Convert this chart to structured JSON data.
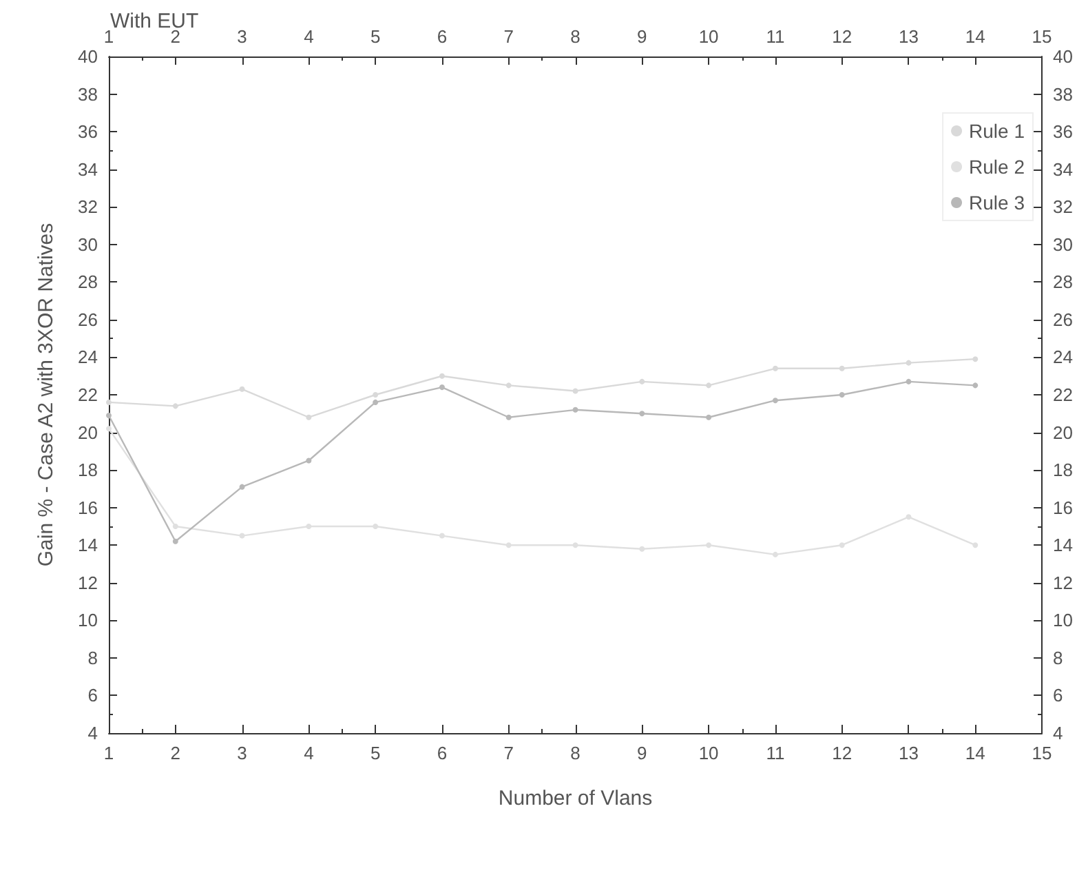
{
  "chart_data": {
    "type": "line",
    "xlabel": "Number of Vlans",
    "ylabel": "Gain % - Case A2 with 3XOR Natives",
    "x2label": "With EUT",
    "x": [
      1,
      2,
      3,
      4,
      5,
      6,
      7,
      8,
      9,
      10,
      11,
      12,
      13,
      14
    ],
    "series": [
      {
        "name": "Rule 1",
        "color": "#d9d9d9",
        "values": [
          21.6,
          21.4,
          22.3,
          20.8,
          22,
          23,
          22.5,
          22.2,
          22.7,
          22.5,
          23.4,
          23.4,
          23.7,
          23.9
        ]
      },
      {
        "name": "Rule 2",
        "color": "#e0e0e0",
        "values": [
          20.2,
          15,
          14.5,
          15,
          15,
          14.5,
          14,
          14,
          13.8,
          14,
          13.5,
          14,
          15.5,
          14
        ]
      },
      {
        "name": "Rule 3",
        "color": "#b8b8b8",
        "values": [
          20.9,
          14.2,
          17.1,
          18.5,
          21.6,
          22.4,
          20.8,
          21.2,
          21,
          20.8,
          21.7,
          22,
          22.7,
          22.5
        ]
      }
    ],
    "xlim": [
      1,
      15
    ],
    "xticks": [
      1,
      2,
      3,
      4,
      5,
      6,
      7,
      8,
      9,
      10,
      11,
      12,
      13,
      14,
      15
    ],
    "x2lim": [
      1,
      15
    ],
    "x2ticks": [
      1,
      2,
      3,
      4,
      5,
      6,
      7,
      8,
      9,
      10,
      11,
      12,
      13,
      14,
      15
    ],
    "ylim": [
      4,
      40
    ],
    "yticks": [
      4,
      6,
      8,
      10,
      12,
      14,
      16,
      18,
      20,
      22,
      24,
      26,
      28,
      30,
      32,
      34,
      36,
      38,
      40
    ],
    "y2lim": [
      4,
      40
    ],
    "y2ticks": [
      4,
      6,
      8,
      10,
      12,
      14,
      16,
      18,
      20,
      22,
      24,
      26,
      28,
      30,
      32,
      34,
      36,
      38,
      40
    ],
    "legend": "top right",
    "marker": "circle",
    "line_style": "solid",
    "grid": false
  }
}
